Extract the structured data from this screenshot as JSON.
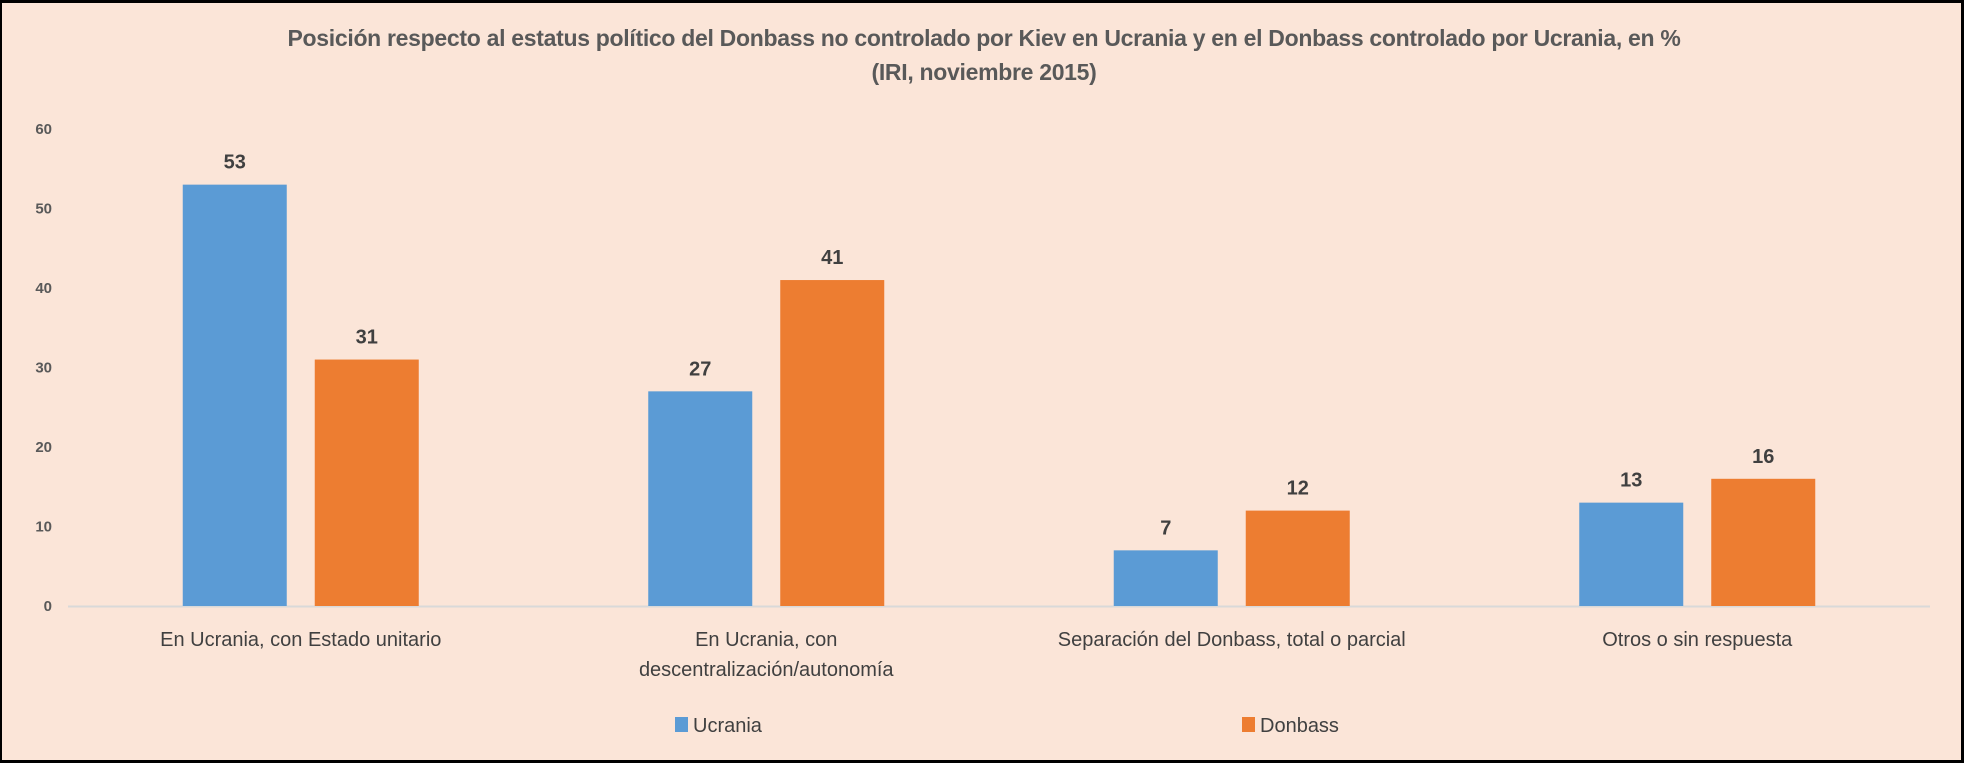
{
  "chart_data": {
    "type": "bar",
    "title": "Posición respecto al estatus político del Donbass no controlado por Kiev en Ucrania y en el Donbass controlado por Ucrania,  en %",
    "subtitle": "(IRI, noviembre 2015)",
    "xlabel": "",
    "ylabel": "",
    "ylim": [
      0,
      60
    ],
    "yticks": [
      0,
      10,
      20,
      30,
      40,
      50,
      60
    ],
    "grid": false,
    "legend_position": "bottom",
    "categories": [
      [
        "En Ucrania, con Estado unitario"
      ],
      [
        "En Ucrania, con",
        "descentralización/autonomía"
      ],
      [
        "Separación del Donbass, total o parcial"
      ],
      [
        "Otros o sin respuesta"
      ]
    ],
    "series": [
      {
        "name": "Ucrania",
        "color": "#5B9BD5",
        "values": [
          53,
          27,
          7,
          13
        ]
      },
      {
        "name": "Donbass",
        "color": "#ED7D31",
        "values": [
          31,
          41,
          12,
          16
        ]
      }
    ],
    "colors": {
      "background": "#FBE5D8",
      "axis": "#D9D9D9",
      "text": "#595959"
    }
  }
}
